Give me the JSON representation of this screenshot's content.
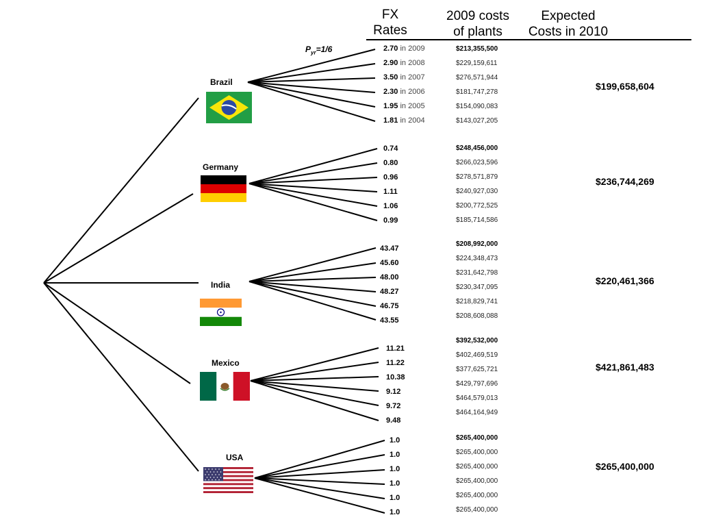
{
  "headers": {
    "fx_rates": "FX\nRates",
    "costs_2009": "2009 costs\nof plants",
    "expected_2010": "Expected\nCosts in 2010"
  },
  "probability": {
    "p": "P",
    "sub": "yr",
    "value": "=1/6"
  },
  "countries": [
    {
      "name": "Brazil",
      "flag": "brazil-flag",
      "expected": "$199,658,604",
      "rates": [
        {
          "rate": "2.70",
          "year": "in 2009"
        },
        {
          "rate": "2.90",
          "year": "in 2008"
        },
        {
          "rate": "3.50",
          "year": "in 2007"
        },
        {
          "rate": "2.30",
          "year": "in 2006"
        },
        {
          "rate": "1.95",
          "year": "in 2005"
        },
        {
          "rate": "1.81",
          "year": "in 2004"
        }
      ],
      "costs": [
        "$213,355,500",
        "$229,159,611",
        "$276,571,944",
        "$181,747,278",
        "$154,090,083",
        "$143,027,205"
      ]
    },
    {
      "name": "Germany",
      "flag": "germany-flag",
      "expected": "$236,744,269",
      "rates": [
        {
          "rate": "0.74"
        },
        {
          "rate": "0.80"
        },
        {
          "rate": "0.96"
        },
        {
          "rate": "1.11"
        },
        {
          "rate": "1.06"
        },
        {
          "rate": "0.99"
        }
      ],
      "costs": [
        "$248,456,000",
        "$266,023,596",
        "$278,571,879",
        "$240,927,030",
        "$200,772,525",
        "$185,714,586"
      ]
    },
    {
      "name": "India",
      "flag": "india-flag",
      "expected": "$220,461,366",
      "rates": [
        {
          "rate": "43.47"
        },
        {
          "rate": "45.60"
        },
        {
          "rate": "48.00"
        },
        {
          "rate": "48.27"
        },
        {
          "rate": "46.75"
        },
        {
          "rate": "43.55"
        }
      ],
      "costs": [
        "$208,992,000",
        "$224,348,473",
        "$231,642,798",
        "$230,347,095",
        "$218,829,741",
        "$208,608,088"
      ]
    },
    {
      "name": "Mexico",
      "flag": "mexico-flag",
      "expected": "$421,861,483",
      "rates": [
        {
          "rate": "11.21"
        },
        {
          "rate": "11.22"
        },
        {
          "rate": "10.38"
        },
        {
          "rate": "9.12"
        },
        {
          "rate": "9.72"
        },
        {
          "rate": "9.48"
        }
      ],
      "costs": [
        "$392,532,000",
        "$402,469,519",
        "$377,625,721",
        "$429,797,696",
        "$464,579,013",
        "$464,164,949"
      ]
    },
    {
      "name": "USA",
      "flag": "usa-flag",
      "expected": "$265,400,000",
      "rates": [
        {
          "rate": "1.0"
        },
        {
          "rate": "1.0"
        },
        {
          "rate": "1.0"
        },
        {
          "rate": "1.0"
        },
        {
          "rate": "1.0"
        },
        {
          "rate": "1.0"
        }
      ],
      "costs": [
        "$265,400,000",
        "$265,400,000",
        "$265,400,000",
        "$265,400,000",
        "$265,400,000",
        "$265,400,000"
      ]
    }
  ]
}
